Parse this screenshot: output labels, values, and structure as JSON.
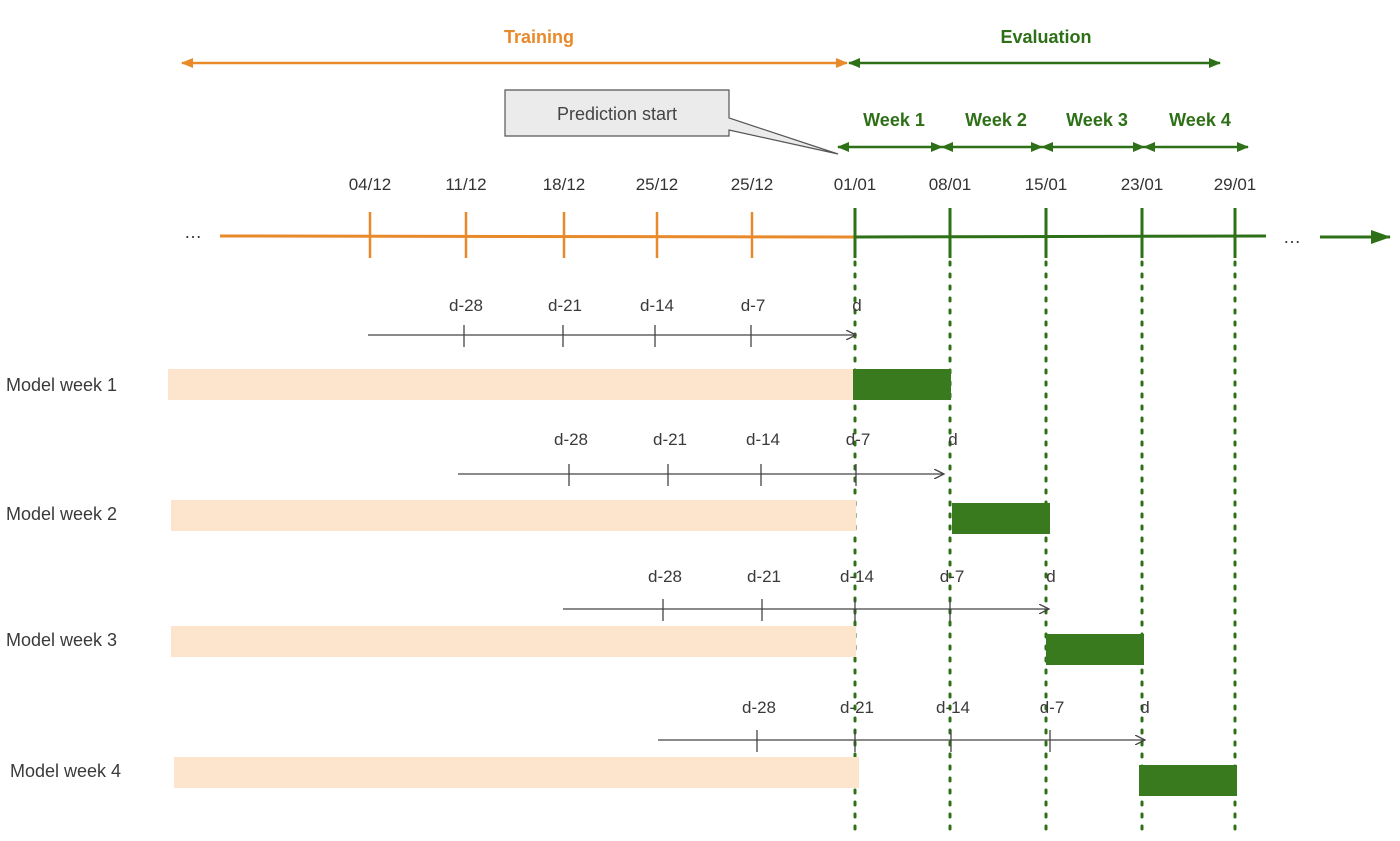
{
  "colors": {
    "training": "#E8892A",
    "evaluation": "#2E7017",
    "training_fill": "#FDE4CC",
    "eval_fill": "#3A7A1E",
    "lag_axis": "#444444",
    "callout_fill": "#EBEBEB",
    "callout_stroke": "#555555"
  },
  "phases": {
    "training": "Training",
    "evaluation": "Evaluation"
  },
  "callout": {
    "label": "Prediction start"
  },
  "weeks": [
    "Week 1",
    "Week 2",
    "Week 3",
    "Week 4"
  ],
  "timeline": {
    "training_dates": [
      "04/12",
      "11/12",
      "18/12",
      "25/12",
      "25/12"
    ],
    "eval_dates": [
      "01/01",
      "08/01",
      "15/01",
      "23/01",
      "29/01"
    ],
    "ellipsis_left": "…",
    "ellipsis_right": "…"
  },
  "models": [
    {
      "label": "Model week 1",
      "lag_labels": [
        "d-28",
        "d-21",
        "d-14",
        "d-7",
        "d"
      ]
    },
    {
      "label": "Model week 2",
      "lag_labels": [
        "d-28",
        "d-21",
        "d-14",
        "d-7",
        "d"
      ]
    },
    {
      "label": "Model week 3",
      "lag_labels": [
        "d-28",
        "d-21",
        "d-14",
        "d-7",
        "d"
      ]
    },
    {
      "label": "Model week 4",
      "lag_labels": [
        "d-28",
        "d-21",
        "d-14",
        "d-7",
        "d"
      ]
    }
  ]
}
